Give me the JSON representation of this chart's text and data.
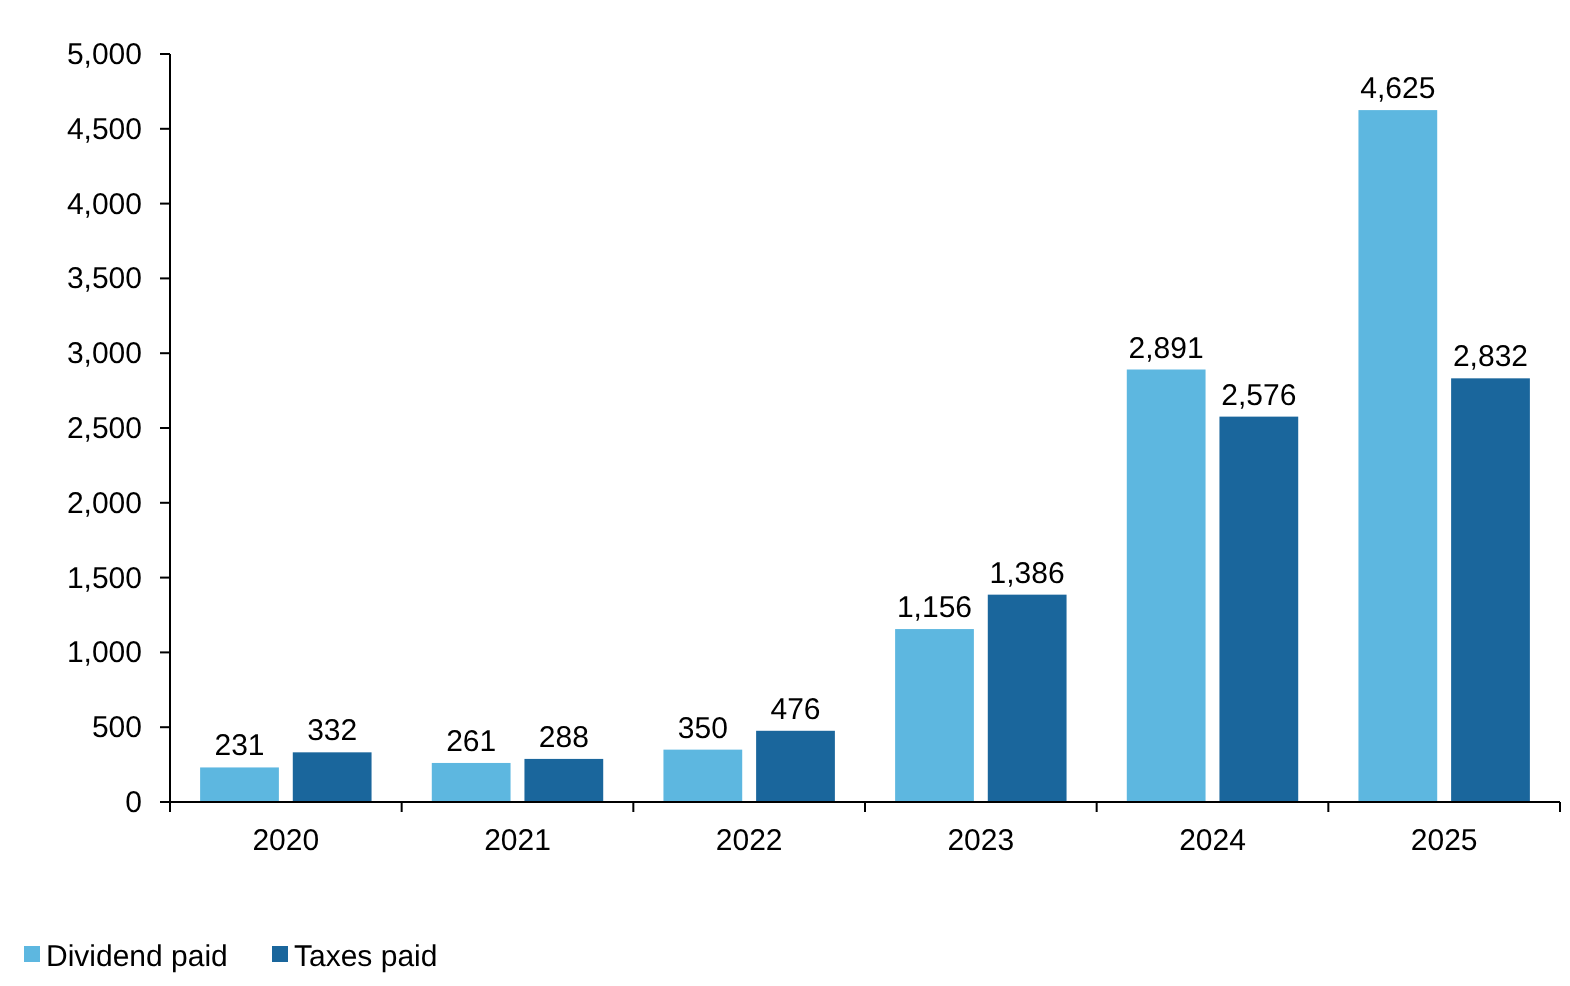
{
  "chart_data": {
    "type": "bar",
    "categories": [
      "2020",
      "2021",
      "2022",
      "2023",
      "2024",
      "2025"
    ],
    "series": [
      {
        "name": "Dividend paid",
        "color": "#5db7e0",
        "values": [
          231,
          261,
          350,
          1156,
          2891,
          4625
        ],
        "value_labels": [
          "231",
          "261",
          "350",
          "1,156",
          "2,891",
          "4,625"
        ]
      },
      {
        "name": "Taxes paid",
        "color": "#1a669c",
        "values": [
          332,
          288,
          476,
          1386,
          2576,
          2832
        ],
        "value_labels": [
          "332",
          "288",
          "476",
          "1,386",
          "2,576",
          "2,832"
        ]
      }
    ],
    "ylim": [
      0,
      5000
    ],
    "yticks": [
      {
        "value": 0,
        "label": "0"
      },
      {
        "value": 500,
        "label": "500"
      },
      {
        "value": 1000,
        "label": "1,000"
      },
      {
        "value": 1500,
        "label": "1,500"
      },
      {
        "value": 2000,
        "label": "2,000"
      },
      {
        "value": 2500,
        "label": "2,500"
      },
      {
        "value": 3000,
        "label": "3,000"
      },
      {
        "value": 3500,
        "label": "3,500"
      },
      {
        "value": 4000,
        "label": "4,000"
      },
      {
        "value": 4500,
        "label": "4,500"
      },
      {
        "value": 5000,
        "label": "5,000"
      }
    ],
    "grid": false,
    "legend": "bottom left"
  }
}
